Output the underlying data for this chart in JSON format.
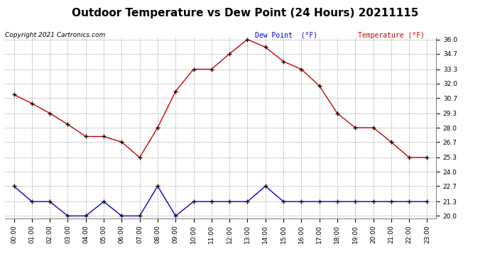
{
  "title": "Outdoor Temperature vs Dew Point (24 Hours) 20211115",
  "copyright": "Copyright 2021 Cartronics.com",
  "legend_dew": "Dew Point  (°F)",
  "legend_temp": "Temperature (°F)",
  "hours": [
    "00:00",
    "01:00",
    "02:00",
    "03:00",
    "04:00",
    "05:00",
    "06:00",
    "07:00",
    "08:00",
    "09:00",
    "10:00",
    "11:00",
    "12:00",
    "13:00",
    "14:00",
    "15:00",
    "16:00",
    "17:00",
    "18:00",
    "19:00",
    "20:00",
    "21:00",
    "22:00",
    "23:00"
  ],
  "temperature": [
    31.0,
    30.2,
    29.3,
    28.3,
    27.2,
    27.2,
    26.7,
    25.3,
    28.0,
    31.3,
    33.3,
    33.3,
    34.7,
    36.0,
    35.3,
    34.0,
    33.3,
    31.8,
    29.3,
    28.0,
    28.0,
    26.7,
    25.3,
    25.3
  ],
  "dew_point": [
    22.7,
    21.3,
    21.3,
    20.0,
    20.0,
    21.3,
    20.0,
    20.0,
    22.7,
    20.0,
    21.3,
    21.3,
    21.3,
    21.3,
    22.7,
    21.3,
    21.3,
    21.3,
    21.3,
    21.3,
    21.3,
    21.3,
    21.3,
    21.3
  ],
  "temp_color": "#cc0000",
  "dew_color": "#0000cc",
  "ylim_min": 20.0,
  "ylim_max": 36.0,
  "yticks": [
    20.0,
    21.3,
    22.7,
    24.0,
    25.3,
    26.7,
    28.0,
    29.3,
    30.7,
    32.0,
    33.3,
    34.7,
    36.0
  ],
  "bg_color": "#ffffff",
  "grid_color": "#aaaaaa",
  "title_fontsize": 11,
  "tick_fontsize": 6.5,
  "copyright_fontsize": 6.5,
  "legend_fontsize": 7
}
